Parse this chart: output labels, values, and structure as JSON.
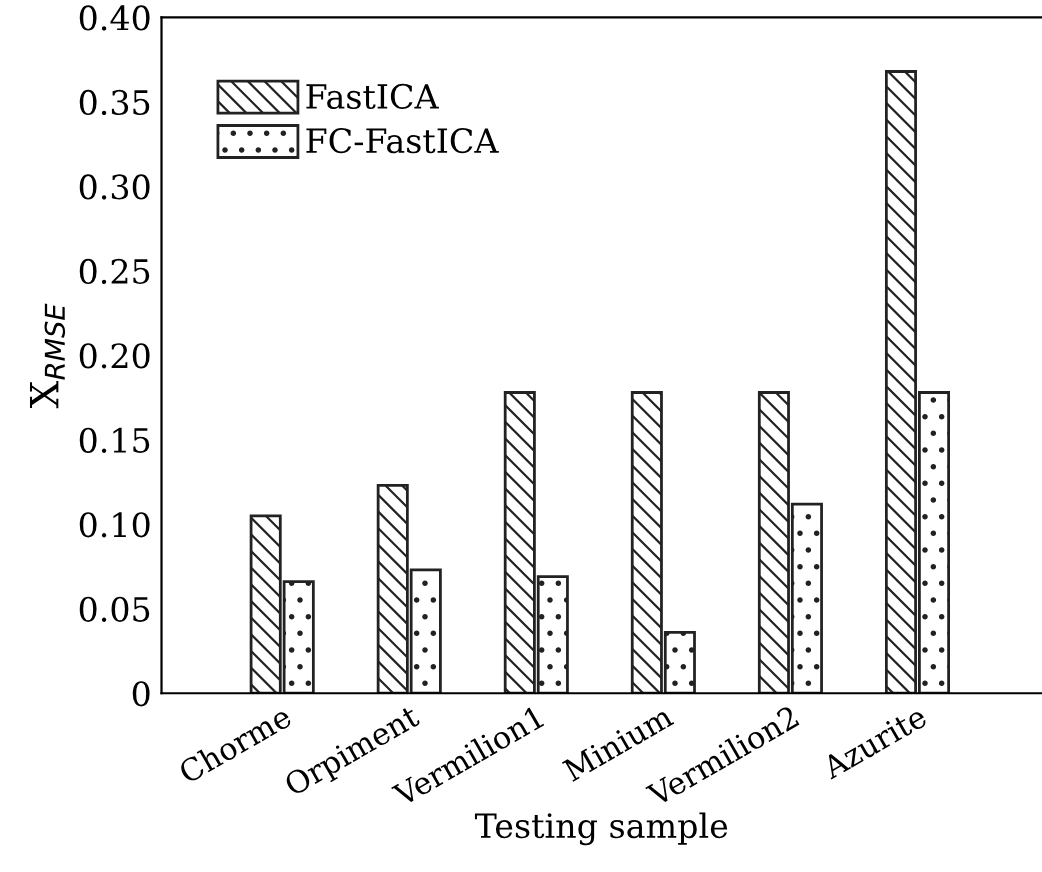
{
  "chart_data": {
    "type": "bar",
    "xlabel": "Testing sample",
    "ylabel": "X$_{RMSE}$",
    "categories": [
      "Chorme",
      "Orpiment",
      "Vermilion1",
      "Minium",
      "Vermilion2",
      "Azurite"
    ],
    "series": [
      {
        "name": "FastICA",
        "color": "#222222",
        "values": [
          0.105,
          0.123,
          0.178,
          0.178,
          0.178,
          0.368
        ]
      },
      {
        "name": "FC-FastICA",
        "color": "#222222",
        "values": [
          0.066,
          0.073,
          0.069,
          0.036,
          0.112,
          0.178
        ]
      }
    ],
    "ylim": [
      0,
      0.4
    ],
    "yticks": [
      0,
      0.05,
      {
        "value": 0.1,
        "label": "0.10"
      },
      0.15,
      {
        "value": 0.2,
        "label": "0.20"
      },
      0.25,
      {
        "value": 0.3,
        "label": "0.30"
      },
      0.35,
      {
        "value": 0.4,
        "label": "0.40"
      }
    ],
    "grid": false,
    "legend": "top left"
  }
}
